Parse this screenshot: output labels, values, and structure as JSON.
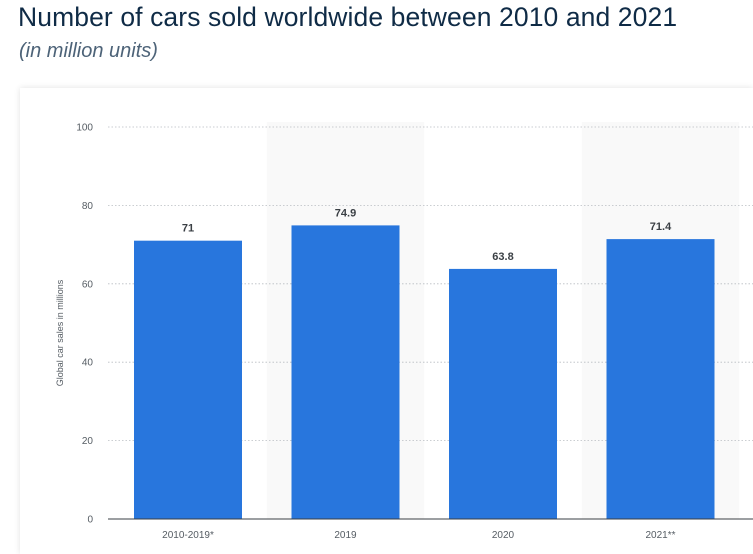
{
  "title": "Number of cars sold worldwide between 2010 and 2021",
  "subtitle": "(in million units)",
  "chart_data": {
    "type": "bar",
    "categories": [
      "2010-2019*",
      "2019",
      "2020",
      "2021**"
    ],
    "values": [
      71,
      74.9,
      63.8,
      71.4
    ],
    "value_labels": [
      "71",
      "74.9",
      "63.8",
      "71.4"
    ],
    "ylabel": "Global car sales in millions",
    "xlabel": "",
    "ylim": [
      0,
      100
    ],
    "yticks": [
      0,
      20,
      40,
      60,
      80,
      100
    ],
    "grid": true,
    "bar_color": "#2876dd",
    "alternating_band_color": "#f9f9f9"
  }
}
